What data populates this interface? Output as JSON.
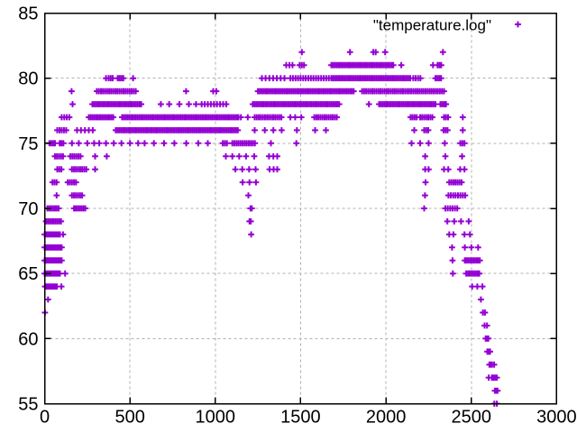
{
  "chart_data": {
    "type": "scatter",
    "title": "",
    "xlabel": "",
    "ylabel": "",
    "xlim": [
      0,
      3000
    ],
    "ylim": [
      55,
      85
    ],
    "x_ticks": [
      0,
      500,
      1000,
      1500,
      2000,
      2500,
      3000
    ],
    "y_ticks": [
      55,
      60,
      65,
      70,
      75,
      80,
      85
    ],
    "grid": true,
    "legend_position": "top-right-inside",
    "marker": "plus",
    "colors": {
      "marker": "#9400d3",
      "grid": "#b0b0b0",
      "border": "#000000",
      "text": "#000000",
      "background": "#ffffff"
    },
    "series": [
      {
        "name": "\"temperature.log\"",
        "rows_unit": "temperature (y) with x positions; runs are [x_start, x_end, x_step] dense runs of plus markers, pts are single plus markers",
        "rows": [
          {
            "temp": 55,
            "runs": [],
            "pts": [
              2635,
              2650
            ]
          },
          {
            "temp": 56,
            "runs": [
              [
                2638,
                2658,
                8
              ]
            ],
            "pts": []
          },
          {
            "temp": 57,
            "runs": [
              [
                2620,
                2652,
                10
              ]
            ],
            "pts": [
              2602
            ]
          },
          {
            "temp": 58,
            "runs": [
              [
                2606,
                2622,
                8
              ]
            ],
            "pts": [
              2634
            ]
          },
          {
            "temp": 59,
            "runs": [
              [
                2594,
                2610,
                8
              ]
            ],
            "pts": []
          },
          {
            "temp": 60,
            "runs": [
              [
                2584,
                2600,
                8
              ]
            ],
            "pts": []
          },
          {
            "temp": 61,
            "runs": [],
            "pts": [
              2578,
              2592
            ]
          },
          {
            "temp": 62,
            "runs": [],
            "pts": [
              2,
              2568,
              2580
            ]
          },
          {
            "temp": 63,
            "runs": [],
            "pts": [
              20,
              2556
            ]
          },
          {
            "temp": 64,
            "runs": [
              [
                2,
                80,
                10
              ]
            ],
            "pts": [
              98,
              2505,
              2535,
              2565
            ]
          },
          {
            "temp": 65,
            "runs": [
              [
                0,
                90,
                10
              ],
              [
                2470,
                2556,
                11
              ]
            ],
            "pts": [
              120,
              2392
            ]
          },
          {
            "temp": 66,
            "runs": [
              [
                0,
                100,
                10
              ],
              [
                2462,
                2556,
                11
              ]
            ],
            "pts": [
              2390
            ]
          },
          {
            "temp": 67,
            "runs": [
              [
                0,
                100,
                10
              ]
            ],
            "pts": [
              2387,
              2462,
              2500,
              2540
            ]
          },
          {
            "temp": 68,
            "runs": [
              [
                0,
                90,
                10
              ]
            ],
            "pts": [
              108,
              1210,
              2371,
              2395,
              2460,
              2492
            ]
          },
          {
            "temp": 69,
            "runs": [
              [
                8,
                100,
                11
              ]
            ],
            "pts": [
              1200,
              1208,
              2360,
              2400,
              2440,
              2485
            ]
          },
          {
            "temp": 70,
            "runs": [
              [
                16,
                86,
                11
              ],
              [
                172,
                240,
                11
              ],
              [
                2348,
                2430,
                14
              ]
            ],
            "pts": [
              1206,
              1214,
              2224
            ]
          },
          {
            "temp": 71,
            "runs": [
              [
                160,
                230,
                12
              ],
              [
                2366,
                2466,
                14
              ]
            ],
            "pts": [
              70,
              1194,
              2229
            ]
          },
          {
            "temp": 72,
            "runs": [
              [
                46,
                76,
                12
              ],
              [
                136,
                192,
                12
              ],
              [
                2371,
                2446,
                12
              ]
            ],
            "pts": [
              1160,
              1200,
              1238,
              2232
            ]
          },
          {
            "temp": 73,
            "runs": [
              [
                74,
                100,
                12
              ],
              [
                160,
                246,
                12
              ]
            ],
            "pts": [
              296,
              1118,
              1158,
              1198,
              1236,
              1318,
              1342,
              1363,
              2230,
              2250,
              2340,
              2365,
              2435,
              2460
            ]
          },
          {
            "temp": 74,
            "runs": [
              [
                60,
                110,
                12
              ],
              [
                150,
                220,
                12
              ]
            ],
            "pts": [
              296,
              364,
              1062,
              1100,
              1140,
              1180,
              1228,
              1315,
              1340,
              1363,
              2230,
              2348,
              2446
            ]
          },
          {
            "temp": 75,
            "runs": [
              [
                28,
                62,
                11
              ],
              [
                88,
                120,
                11
              ],
              [
                1044,
                1070,
                12
              ],
              [
                1100,
                1235,
                12
              ],
              [
                2436,
                2462,
                12
              ]
            ],
            "pts": [
              160,
              200,
              250,
              290,
              320,
              360,
              405,
              450,
              500,
              548,
              586,
              640,
              700,
              760,
              830,
              900,
              956,
              1326,
              1475,
              2150,
              2200,
              2250,
              2345
            ]
          },
          {
            "temp": 76,
            "runs": [
              [
                74,
                127,
                13
              ],
              [
                190,
                285,
                23
              ],
              [
                417,
                1140,
                11
              ],
              [
                2224,
                2255,
                12
              ],
              [
                2337,
                2371,
                12
              ]
            ],
            "pts": [
              1231,
              1290,
              1340,
              1389,
              1478,
              1585,
              1648,
              2166,
              2450
            ]
          },
          {
            "temp": 77,
            "runs": [
              [
                100,
                148,
                15
              ],
              [
                259,
                412,
                11
              ],
              [
                454,
                1141,
                11
              ],
              [
                1231,
                1394,
                12
              ],
              [
                1580,
                1712,
                12
              ],
              [
                2144,
                2180,
                12
              ],
              [
                2200,
                2276,
                12
              ],
              [
                2340,
                2366,
                12
              ]
            ],
            "pts": [
              1150,
              1190,
              1440,
              1468,
              1504,
              2450
            ]
          },
          {
            "temp": 78,
            "runs": [
              [
                280,
                570,
                11
              ],
              [
                920,
                1080,
                18
              ],
              [
                1220,
                1730,
                11
              ],
              [
                1960,
                2292,
                11
              ],
              [
                2319,
                2356,
                11
              ]
            ],
            "pts": [
              164,
              681,
              730,
              790,
              845,
              887,
              1900
            ]
          },
          {
            "temp": 79,
            "runs": [
              [
                306,
                544,
                12
              ],
              [
                1250,
                1820,
                11
              ],
              [
                1860,
                2345,
                12
              ]
            ],
            "pts": [
              158,
              829,
              988,
              1006
            ]
          },
          {
            "temp": 80,
            "runs": [
              [
                375,
                400,
                12
              ],
              [
                428,
                465,
                11
              ],
              [
                1273,
                1420,
                22
              ],
              [
                1440,
                1670,
                15
              ],
              [
                1680,
                2150,
                11
              ],
              [
                2160,
                2205,
                14
              ],
              [
                2290,
                2330,
                11
              ]
            ],
            "pts": [
              360,
              518
            ]
          },
          {
            "temp": 81,
            "runs": [
              [
                1416,
                1458,
                18
              ],
              [
                1494,
                1521,
                13
              ],
              [
                1680,
                2050,
                11
              ],
              [
                2302,
                2330,
                11
              ]
            ],
            "pts": [
              2090,
              2276
            ]
          },
          {
            "temp": 82,
            "runs": [],
            "pts": [
              1507,
              1789,
              1926,
              1940,
              1995,
              2334
            ]
          }
        ]
      }
    ]
  },
  "legend": {
    "label": "\"temperature.log\"",
    "marker_icon": "plus-marker"
  }
}
